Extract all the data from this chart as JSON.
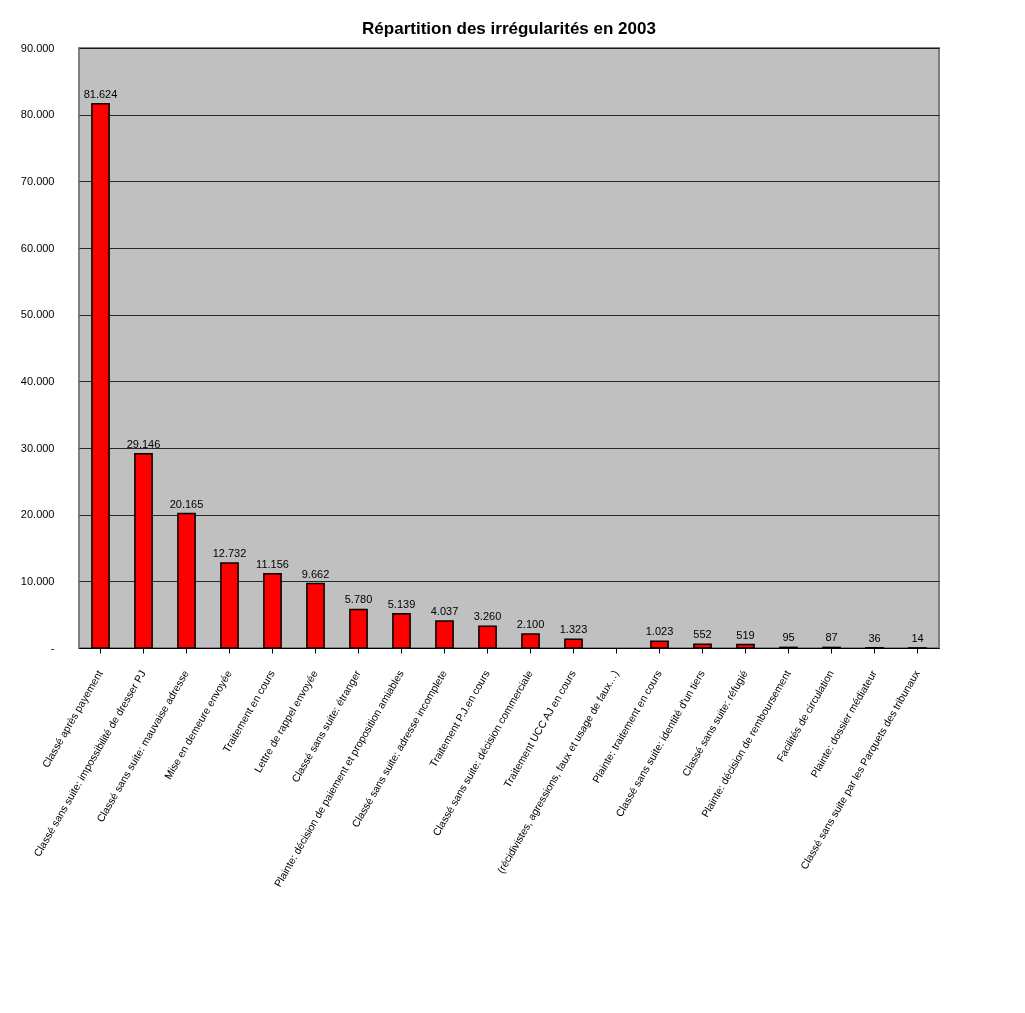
{
  "chart_data": {
    "type": "bar",
    "title": "Répartition des irrégularités en 2003",
    "categories": [
      "Classé après payement",
      "Classé sans suite: impossibilité de dresser PJ",
      "Classé sans suite: mauvaise adresse",
      "Mise en demeure envoyée",
      "Traitement en cours",
      "Lettre de rappel envoyée",
      "Classé sans suite: étranger",
      "Plainte: décision de paiement et proposition amiables",
      "Classé sans suite: adresse incomplete",
      "Traitement P.J.en cours",
      "Classé sans suite: décision commerciale",
      "Traitement UCC AJ en cours",
      "(récidivistes, agressions, faux et usage de faux…)",
      "Plainte: traitement en cours",
      "Classé sans suite: identité d'un tiers",
      "Classé sans suite: réfugié",
      "Plainte: décision de remboursement",
      "Facilités de circulation",
      "Plainte: dossier médiateur",
      "Classé sans suite par les Parquets des tribunaux"
    ],
    "values": [
      81624,
      29146,
      20165,
      12732,
      11156,
      9662,
      5780,
      5139,
      4037,
      3260,
      2100,
      1323,
      null,
      1023,
      552,
      519,
      95,
      87,
      36,
      14
    ],
    "value_labels": [
      "81.624",
      "29.146",
      "20.165",
      "12.732",
      "11.156",
      "9.662",
      "5.780",
      "5.139",
      "4.037",
      "3.260",
      "2.100",
      "1.323",
      null,
      "1.023",
      "552",
      "519",
      "95",
      "87",
      "36",
      "14"
    ],
    "color": "#ff0000",
    "ylim": [
      0,
      90000
    ],
    "yticks": [
      {
        "value": 0,
        "label": "-"
      },
      {
        "value": 10000,
        "label": "10.000"
      },
      {
        "value": 20000,
        "label": "20.000"
      },
      {
        "value": 30000,
        "label": "30.000"
      },
      {
        "value": 40000,
        "label": "40.000"
      },
      {
        "value": 50000,
        "label": "50.000"
      },
      {
        "value": 60000,
        "label": "60.000"
      },
      {
        "value": 70000,
        "label": "70.000"
      },
      {
        "value": 80000,
        "label": "80.000"
      },
      {
        "value": 90000,
        "label": "90.000"
      }
    ],
    "grid": "y"
  }
}
